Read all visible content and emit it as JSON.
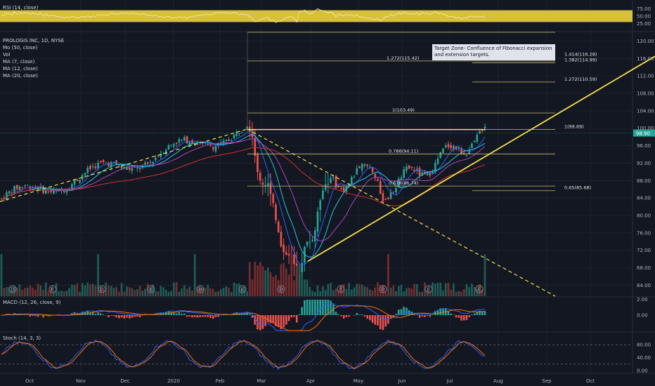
{
  "header": {
    "symbol_line": "PROLOGIS INC, 1D, NYSE",
    "indicators": [
      "Mo (50, close)",
      "Vol",
      "MA (7, close)",
      "MA (12, close)",
      "MA (20, close)"
    ],
    "rsi_title": "RSI (14, close)",
    "macd_title": "MACD (12, 26, close, 9)",
    "stoch_title": "Stoch (14, 3, 3)"
  },
  "annotation": {
    "lines": [
      "Target Zone- Confluence of Fibonacci expansion",
      "and extension targets."
    ]
  },
  "fib_labels": [
    {
      "text": "1.414(116.28)",
      "price": 116.28
    },
    {
      "text": "1.382(114.99)",
      "price": 114.99
    },
    {
      "text": "1.272(115.42)",
      "price": 115.42
    },
    {
      "text": "1.272(110.59)",
      "price": 110.59
    },
    {
      "text": "1(103.49)",
      "price": 103.49
    },
    {
      "text": "1(99.69)",
      "price": 99.69
    },
    {
      "text": "0.786(94.11)",
      "price": 94.11
    },
    {
      "text": "0.618(86.74)",
      "price": 86.74
    },
    {
      "text": "0.65(85.68)",
      "price": 85.68
    }
  ],
  "current_price": "98.90",
  "event_markers": [
    "D",
    "E",
    "D",
    "E",
    "D",
    "E",
    "D",
    "E",
    "D",
    "E",
    "C"
  ],
  "chart_data": [
    {
      "type": "line",
      "title": "RSI (14, close)",
      "y_ticks": [
        "75.00",
        "50.00",
        "25.00"
      ],
      "band": [
        30,
        70
      ],
      "colors": {
        "line": "#f0e6a0",
        "band": "#d7c03c"
      }
    },
    {
      "type": "candlestick",
      "title": "PROLOGIS INC, 1D, NYSE",
      "y_ticks": [
        "120.00",
        "116.00",
        "112.00",
        "108.00",
        "104.00",
        "100.00",
        "96.00",
        "92.00",
        "88.00",
        "84.00",
        "80.00",
        "76.00",
        "72.00",
        "68.00",
        "64.00"
      ],
      "ylim": [
        61.5,
        122
      ],
      "x_ticks": [
        "Oct",
        "Nov",
        "Dec",
        "2020",
        "Feb",
        "Mar",
        "Apr",
        "May",
        "Jun",
        "Jul",
        "Aug",
        "Sep",
        "Oct"
      ],
      "key_prices": {
        "start": 83.5,
        "feb_high": 99.8,
        "mar_low": 64.5,
        "last": 98.9
      },
      "colors": {
        "up": "#26a69a",
        "down": "#ef5350",
        "trend": "#f5e04a",
        "fib": "#c8c070"
      }
    },
    {
      "type": "bar",
      "title": "MACD (12, 26, close, 9)",
      "y_ticks": [
        "2.00",
        "0.00"
      ],
      "colors": {
        "macd": "#2962ff",
        "signal": "#ff6d00",
        "hist_up": "#26a69a",
        "hist_down": "#ef5350"
      }
    },
    {
      "type": "line",
      "title": "Stoch (14, 3, 3)",
      "y_ticks": [
        "80.00",
        "40.00",
        "0.00"
      ],
      "colors": {
        "k": "#2962ff",
        "d": "#ff6d00"
      }
    }
  ]
}
